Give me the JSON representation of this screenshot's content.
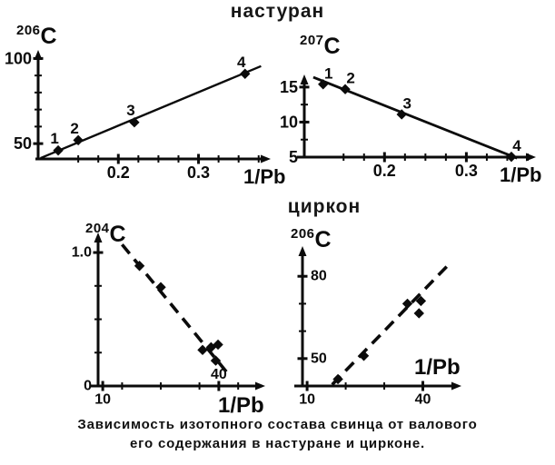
{
  "figure": {
    "title_top": "настуран",
    "title_middle": "циркон",
    "caption_line1": "Зависимость изотопного состава свинца от валового",
    "caption_line2": "его содержания в настуране и цирконе.",
    "ink_color": "#0b0b0b",
    "background_color": "#ffffff"
  },
  "chart_data": [
    {
      "id": "nasturan-206",
      "type": "scatter",
      "group_title": "настуран",
      "ylabel_isotope": "206",
      "ylabel_letter": "C",
      "xlabel": "1/Pb",
      "x_range": [
        0.1,
        0.39
      ],
      "y_range": [
        41,
        105
      ],
      "grid": false,
      "x_ticks": [
        {
          "v": 0.2,
          "label": "0.2"
        },
        {
          "v": 0.3,
          "label": "0.3"
        }
      ],
      "x_minor_ticks": [
        0.15,
        0.175,
        0.225,
        0.25,
        0.275,
        0.325,
        0.35,
        0.375
      ],
      "y_ticks": [
        {
          "v": 50,
          "label": "50"
        },
        {
          "v": 100,
          "label": "100"
        }
      ],
      "y_minor_ticks": [
        60,
        70,
        80,
        90
      ],
      "trend_line": {
        "x1": 0.103,
        "y1": 41.5,
        "x2": 0.378,
        "y2": 95.5,
        "style": "solid"
      },
      "points": [
        {
          "x": 0.125,
          "y": 46,
          "label": "1"
        },
        {
          "x": 0.15,
          "y": 52,
          "label": "2"
        },
        {
          "x": 0.22,
          "y": 62.5,
          "label": "3"
        },
        {
          "x": 0.358,
          "y": 91,
          "label": "4"
        }
      ]
    },
    {
      "id": "nasturan-207",
      "type": "scatter",
      "group_title": "настуран",
      "ylabel_isotope": "207",
      "ylabel_letter": "C",
      "xlabel": "1/Pb",
      "x_range": [
        0.102,
        0.385
      ],
      "y_range": [
        5,
        16.8
      ],
      "grid": false,
      "x_ticks": [
        {
          "v": 0.2,
          "label": "0.2"
        },
        {
          "v": 0.3,
          "label": "0.3"
        }
      ],
      "x_minor_ticks": [
        0.15,
        0.175,
        0.225,
        0.25,
        0.275,
        0.325,
        0.35,
        0.375
      ],
      "y_ticks": [
        {
          "v": 5,
          "label": "5"
        },
        {
          "v": 10,
          "label": "10"
        },
        {
          "v": 15,
          "label": "15"
        }
      ],
      "y_minor_ticks": [
        7.5,
        12.5
      ],
      "trend_line": {
        "x1": 0.113,
        "y1": 16.4,
        "x2": 0.362,
        "y2": 4.85,
        "style": "solid"
      },
      "points": [
        {
          "x": 0.125,
          "y": 15.4,
          "label": "1"
        },
        {
          "x": 0.152,
          "y": 14.7,
          "label": "2"
        },
        {
          "x": 0.221,
          "y": 11.1,
          "label": "3"
        },
        {
          "x": 0.355,
          "y": 5.05,
          "label": "4"
        }
      ]
    },
    {
      "id": "zircon-204",
      "type": "scatter",
      "group_title": "циркон",
      "ylabel_isotope": "204",
      "ylabel_letter": "C",
      "xlabel": "1/Pb",
      "x_range": [
        8.8,
        52
      ],
      "y_range": [
        0,
        1.15
      ],
      "grid": false,
      "x_ticks": [
        {
          "v": 10,
          "label": "10"
        },
        {
          "v": 40,
          "label": "40"
        }
      ],
      "x_minor_ticks": [
        15,
        25,
        35,
        45
      ],
      "y_ticks": [
        {
          "v": 0,
          "label": "0"
        },
        {
          "v": 1.0,
          "label": "1.0"
        }
      ],
      "y_minor_ticks": [
        0.25,
        0.5,
        0.75
      ],
      "trend_line": {
        "x1": 15,
        "y1": 1.06,
        "x2": 43,
        "y2": 0.07,
        "style": "dashed"
      },
      "points": [
        {
          "x": 19.5,
          "y": 0.9
        },
        {
          "x": 25.0,
          "y": 0.74
        },
        {
          "x": 35.8,
          "y": 0.27
        },
        {
          "x": 38.0,
          "y": 0.29
        },
        {
          "x": 39.8,
          "y": 0.31
        },
        {
          "x": 39.2,
          "y": 0.19
        }
      ]
    },
    {
      "id": "zircon-206",
      "type": "scatter",
      "group_title": "циркон",
      "ylabel_isotope": "206",
      "ylabel_letter": "C",
      "xlabel": "1/Pb",
      "x_range": [
        8.8,
        50
      ],
      "y_range": [
        40,
        91
      ],
      "grid": false,
      "x_ticks": [
        {
          "v": 10,
          "label": "10"
        },
        {
          "v": 40,
          "label": "40"
        }
      ],
      "x_minor_ticks": [
        20,
        30
      ],
      "y_ticks": [
        {
          "v": 50,
          "label": "50"
        },
        {
          "v": 80,
          "label": "80"
        }
      ],
      "y_minor_ticks": [
        60,
        70
      ],
      "trend_line": {
        "x1": 16.5,
        "y1": 40.5,
        "x2": 46.5,
        "y2": 84,
        "style": "dashed"
      },
      "points": [
        {
          "x": 18.0,
          "y": 42.5
        },
        {
          "x": 24.7,
          "y": 51
        },
        {
          "x": 36.0,
          "y": 70
        },
        {
          "x": 39.5,
          "y": 71
        },
        {
          "x": 39.0,
          "y": 66.5
        }
      ]
    }
  ]
}
